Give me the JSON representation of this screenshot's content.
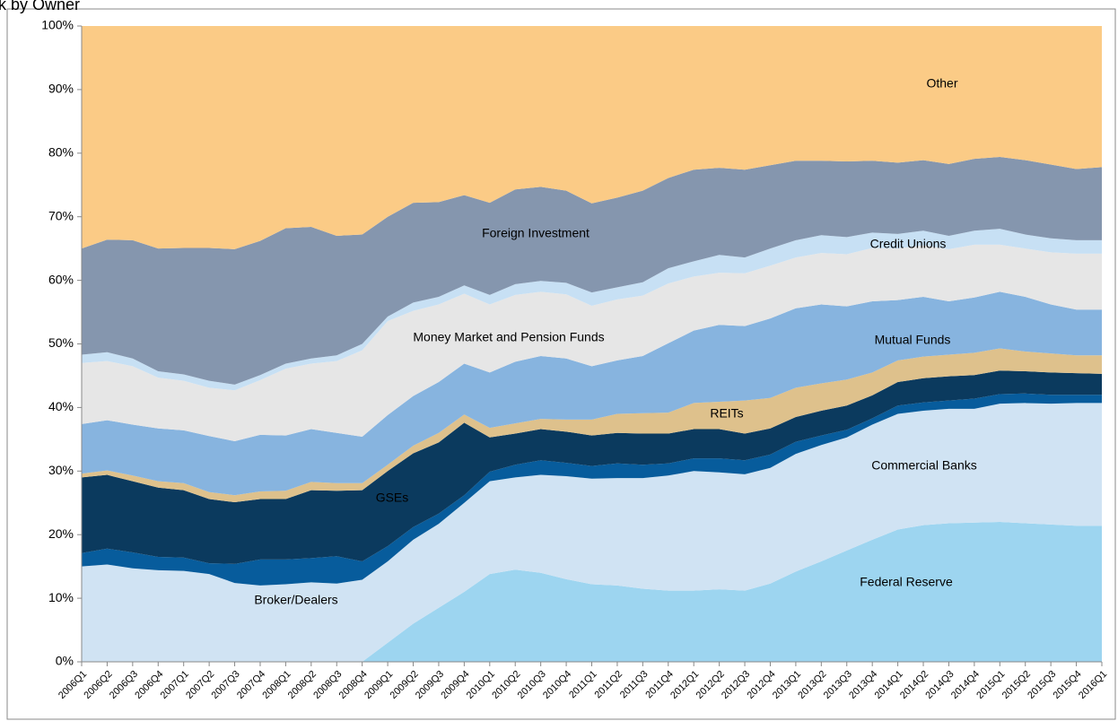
{
  "chart_data": {
    "type": "stacked-area",
    "title": "k by Owner",
    "categories": [
      "2006Q1",
      "2006Q2",
      "2006Q3",
      "2006Q4",
      "2007Q1",
      "2007Q2",
      "2007Q3",
      "2007Q4",
      "2008Q1",
      "2008Q2",
      "2008Q3",
      "2008Q4",
      "2009Q1",
      "2009Q2",
      "2009Q3",
      "2009Q4",
      "2010Q1",
      "2010Q2",
      "2010Q3",
      "2010Q4",
      "2011Q1",
      "2011Q2",
      "2011Q3",
      "2011Q4",
      "2012Q1",
      "2012Q2",
      "2012Q3",
      "2012Q4",
      "2013Q1",
      "2013Q2",
      "2013Q3",
      "2013Q4",
      "2014Q1",
      "2014Q2",
      "2014Q3",
      "2014Q4",
      "2015Q1",
      "2015Q2",
      "2015Q3",
      "2015Q4",
      "2016Q1"
    ],
    "ylim": [
      0,
      100
    ],
    "yticks": [
      {
        "value": 0,
        "label": "0%"
      },
      {
        "value": 10,
        "label": "10%"
      },
      {
        "value": 20,
        "label": "20%"
      },
      {
        "value": 30,
        "label": "30%"
      },
      {
        "value": 40,
        "label": "40%"
      },
      {
        "value": 50,
        "label": "50%"
      },
      {
        "value": 60,
        "label": "60%"
      },
      {
        "value": 70,
        "label": "70%"
      },
      {
        "value": 80,
        "label": "80%"
      },
      {
        "value": 90,
        "label": "90%"
      },
      {
        "value": 100,
        "label": "100%"
      }
    ],
    "grid": false,
    "series": [
      {
        "name": "Federal Reserve",
        "color": "#9dd5f0",
        "values": [
          0,
          0,
          0,
          0,
          0,
          0,
          0,
          0,
          0,
          0,
          0,
          0,
          3,
          6,
          8.5,
          11,
          13.8,
          14.5,
          14,
          13,
          12.2,
          12,
          11.5,
          11.2,
          11.2,
          11.4,
          11.2,
          12.3,
          14.2,
          15.8,
          17.5,
          19.2,
          20.8,
          21.5,
          21.8,
          21.9,
          22,
          21.8,
          21.6,
          21.4,
          21.4
        ]
      },
      {
        "name": "Commercial Banks",
        "color": "#d0e3f3",
        "values": [
          15,
          15.3,
          14.7,
          14.4,
          14.3,
          13.8,
          12.4,
          12,
          12.2,
          12.5,
          12.3,
          12.9,
          12.8,
          13.2,
          13.2,
          14,
          14.6,
          14.5,
          15.4,
          16.2,
          16.6,
          16.9,
          17.4,
          18.1,
          18.8,
          18.4,
          18.3,
          18.2,
          18.5,
          18.3,
          17.8,
          18.1,
          18.2,
          18,
          18,
          17.9,
          18.6,
          18.9,
          19,
          19.3,
          19.3
        ]
      },
      {
        "name": "Broker/Dealers",
        "color": "#075c9c",
        "values": [
          2.1,
          2.5,
          2.5,
          2.1,
          2.1,
          1.7,
          3,
          4.1,
          3.9,
          3.8,
          4.3,
          2.9,
          2.4,
          2,
          1.6,
          1.2,
          1.5,
          2,
          2.3,
          2.1,
          2,
          2.3,
          2.1,
          1.9,
          2,
          2.2,
          2.2,
          2.1,
          1.9,
          1.5,
          1.2,
          1,
          1.3,
          1.3,
          1.3,
          1.6,
          1.5,
          1.5,
          1.4,
          1.3,
          1.3
        ]
      },
      {
        "name": "GSEs",
        "color": "#0b3a5e",
        "values": [
          11.9,
          11.6,
          11.2,
          10.9,
          10.6,
          10.1,
          9.7,
          9.5,
          9.5,
          10.7,
          10.3,
          11.2,
          11.8,
          11.6,
          11.2,
          11.4,
          5.4,
          4.9,
          4.9,
          4.9,
          4.8,
          4.8,
          4.9,
          4.7,
          4.6,
          4.6,
          4.2,
          4.1,
          3.9,
          3.9,
          3.8,
          3.6,
          3.7,
          3.8,
          3.8,
          3.7,
          3.7,
          3.5,
          3.5,
          3.4,
          3.3
        ]
      },
      {
        "name": "REITs",
        "color": "#dec18c",
        "values": [
          0.6,
          0.7,
          0.9,
          1,
          1.1,
          1.1,
          1.1,
          1.2,
          1.3,
          1.3,
          1.2,
          1.1,
          1,
          1.2,
          1.5,
          1.3,
          1.5,
          1.6,
          1.6,
          1.9,
          2.5,
          3,
          3.2,
          3.3,
          4.1,
          4.3,
          5.2,
          4.8,
          4.6,
          4.3,
          4.1,
          3.6,
          3.4,
          3.4,
          3.4,
          3.5,
          3.5,
          3.1,
          3,
          2.8,
          2.9
        ]
      },
      {
        "name": "Mutual Funds",
        "color": "#87b4df",
        "values": [
          7.8,
          7.9,
          8,
          8.3,
          8.3,
          8.8,
          8.5,
          8.9,
          8.7,
          8.3,
          7.9,
          7.3,
          7.8,
          7.8,
          8,
          8,
          8.7,
          9.7,
          9.9,
          9.6,
          8.4,
          8.4,
          9,
          10.9,
          11.4,
          12.1,
          11.7,
          12.5,
          12.5,
          12.4,
          11.5,
          11.2,
          9.5,
          9.4,
          8.4,
          8.7,
          8.9,
          8.6,
          7.7,
          7.2,
          7.2
        ]
      },
      {
        "name": "Money Market and Pension Funds",
        "color": "#e6e6e6",
        "values": [
          9.6,
          9.3,
          9.2,
          8,
          7.8,
          7.6,
          8,
          8.6,
          10.5,
          10.3,
          11.3,
          13.6,
          14.8,
          13.4,
          12.2,
          11,
          10.7,
          10.5,
          10.1,
          10.1,
          9.5,
          9.6,
          9.5,
          9.4,
          8.5,
          8.2,
          8.3,
          8.3,
          8,
          8.1,
          8.2,
          8.4,
          8.1,
          8.1,
          8.2,
          8.3,
          7.4,
          7.6,
          8.2,
          8.8,
          8.8
        ]
      },
      {
        "name": "Credit Unions",
        "color": "#c7e0f4",
        "values": [
          1.3,
          1.4,
          1.2,
          1,
          1,
          1.1,
          0.9,
          0.8,
          0.8,
          0.8,
          0.9,
          1,
          0.7,
          1.3,
          1.2,
          1.3,
          1.5,
          1.7,
          1.7,
          1.8,
          2.1,
          1.9,
          2.1,
          2.4,
          2.4,
          2.8,
          2.5,
          2.7,
          2.7,
          2.8,
          2.7,
          2.4,
          2.3,
          2.3,
          2.1,
          2.2,
          2.5,
          2.2,
          2.2,
          2.1,
          2.1
        ]
      },
      {
        "name": "Foreign Investment",
        "color": "#8596ae",
        "values": [
          16.7,
          17.7,
          18.6,
          19.3,
          19.9,
          20.9,
          21.3,
          21.1,
          21.3,
          20.7,
          18.8,
          17.2,
          15.7,
          15.7,
          14.9,
          14.2,
          14.5,
          14.9,
          14.8,
          14.5,
          14,
          14.1,
          14.4,
          14.2,
          14.4,
          13.7,
          13.8,
          13.1,
          12.5,
          11.7,
          11.9,
          11.3,
          11.2,
          11.1,
          11.3,
          11.3,
          11.3,
          11.7,
          11.6,
          11.2,
          11.5
        ]
      },
      {
        "name": "Other",
        "color": "#fbcb86",
        "values": [
          35,
          33.6,
          33.7,
          35,
          34.9,
          34.9,
          35.1,
          33.8,
          31.8,
          31.6,
          33,
          32.8,
          30,
          27.8,
          27.7,
          26.6,
          27.8,
          25.7,
          25.3,
          25.9,
          27.9,
          27,
          25.9,
          23.9,
          22.6,
          22.3,
          22.6,
          21.9,
          21.2,
          21.2,
          21.3,
          21.2,
          21.5,
          21.1,
          21.7,
          20.9,
          20.6,
          21.1,
          21.8,
          22.5,
          22.2
        ]
      }
    ]
  }
}
